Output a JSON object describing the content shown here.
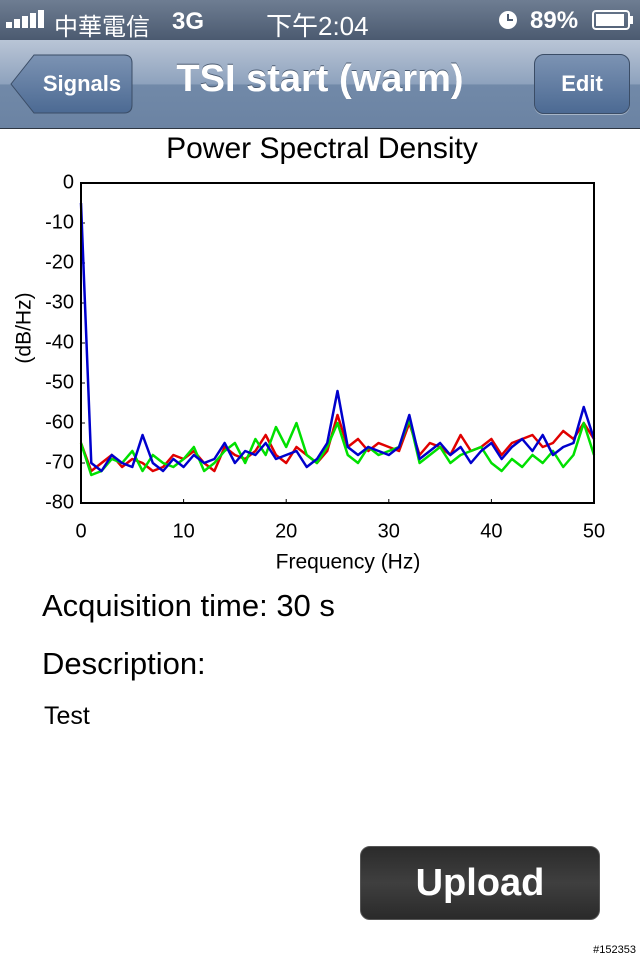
{
  "status_bar": {
    "carrier": "中華電信",
    "network": "3G",
    "time": "下午2:04",
    "battery": "89%"
  },
  "nav_bar": {
    "back_button": "Signals",
    "title": "TSI start (warm)",
    "right_button": "Edit"
  },
  "chart_data": {
    "type": "line",
    "title": "Power Spectral Density",
    "xlabel": "Frequency (Hz)",
    "ylabel": "(dB/Hz)",
    "x": [
      0,
      1,
      2,
      3,
      4,
      5,
      6,
      7,
      8,
      9,
      10,
      11,
      12,
      13,
      14,
      15,
      16,
      17,
      18,
      19,
      20,
      21,
      22,
      23,
      24,
      25,
      26,
      27,
      28,
      29,
      30,
      31,
      32,
      33,
      34,
      35,
      36,
      37,
      38,
      39,
      40,
      41,
      42,
      43,
      44,
      45,
      46,
      47,
      48,
      49,
      50
    ],
    "series": [
      {
        "color": "#e00000",
        "values": [
          -65,
          -72,
          -70,
          -68,
          -71,
          -69,
          -70,
          -72,
          -71,
          -68,
          -69,
          -67,
          -70,
          -72,
          -66,
          -68,
          -69,
          -67,
          -63,
          -68,
          -70,
          -66,
          -68,
          -70,
          -67,
          -58,
          -66,
          -64,
          -67,
          -65,
          -66,
          -67,
          -60,
          -68,
          -65,
          -66,
          -68,
          -63,
          -67,
          -66,
          -64,
          -68,
          -65,
          -64,
          -63,
          -66,
          -65,
          -62,
          -64,
          -60,
          -64
        ]
      },
      {
        "color": "#00e000",
        "values": [
          -65,
          -73,
          -72,
          -69,
          -70,
          -67,
          -72,
          -68,
          -70,
          -71,
          -69,
          -66,
          -72,
          -70,
          -67,
          -65,
          -70,
          -64,
          -68,
          -61,
          -66,
          -60,
          -68,
          -70,
          -66,
          -60,
          -68,
          -70,
          -66,
          -68,
          -67,
          -66,
          -59,
          -70,
          -68,
          -66,
          -70,
          -68,
          -67,
          -66,
          -70,
          -72,
          -69,
          -71,
          -68,
          -70,
          -67,
          -71,
          -68,
          -60,
          -68
        ]
      },
      {
        "color": "#0000cc",
        "values": [
          -5,
          -70,
          -72,
          -68,
          -70,
          -71,
          -63,
          -70,
          -72,
          -69,
          -71,
          -68,
          -70,
          -69,
          -65,
          -70,
          -67,
          -68,
          -65,
          -69,
          -68,
          -67,
          -71,
          -69,
          -65,
          -52,
          -66,
          -68,
          -66,
          -67,
          -68,
          -66,
          -58,
          -69,
          -67,
          -65,
          -68,
          -66,
          -70,
          -67,
          -65,
          -69,
          -66,
          -64,
          -67,
          -63,
          -68,
          -66,
          -65,
          -56,
          -64
        ]
      }
    ],
    "xlim": [
      0,
      50
    ],
    "xticks": [
      0,
      10,
      20,
      30,
      40,
      50
    ],
    "ylim": [
      -80,
      0
    ],
    "yticks": [
      0,
      -10,
      -20,
      -30,
      -40,
      -50,
      -60,
      -70,
      -80
    ],
    "grid": false
  },
  "fields": {
    "acquisition_time": "Acquisition time: 30 s",
    "description_label": "Description:",
    "description": "Test"
  },
  "upload_button": "Upload",
  "watermark": "#152353"
}
